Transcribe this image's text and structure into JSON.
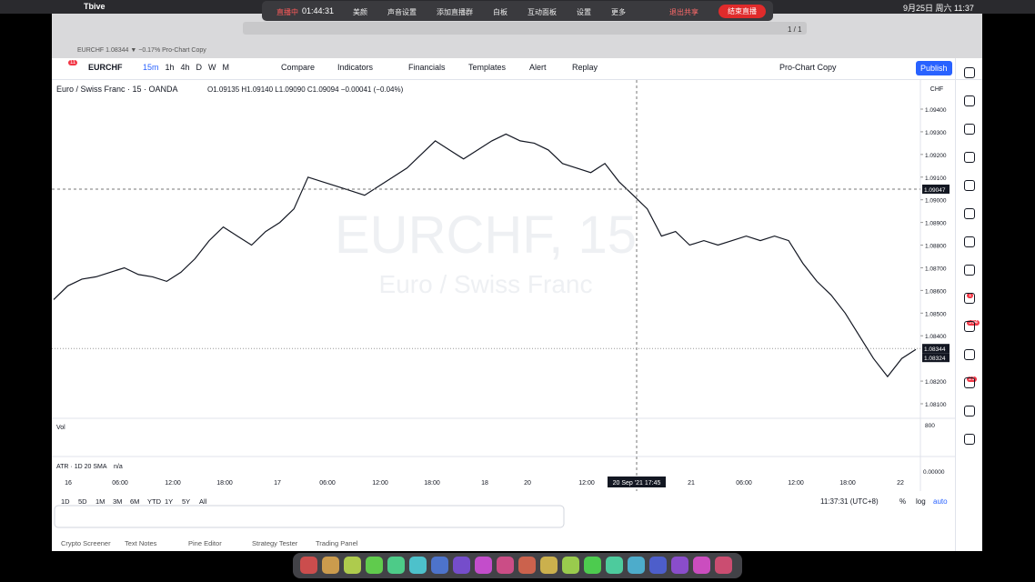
{
  "menubar": {
    "app": "Tbive",
    "datetime": "9月25日 周六 11:37"
  },
  "live_bar": {
    "status": "直播中",
    "timer": "01:44:31",
    "items": [
      "美颜",
      "声音设置",
      "添加直播群",
      "白板",
      "互动面板",
      "设置",
      "更多"
    ],
    "stop_share": "退出共享",
    "end_live": "结束直播",
    "pages": "1 / 1"
  },
  "browser": {
    "tab": "EURCHF 1.08344 ▼ −0.17% Pro-Chart Copy"
  },
  "toolbar": {
    "menu_badge": "11",
    "symbol": "EURCHF",
    "intervals": [
      "15m",
      "1h",
      "4h",
      "D",
      "W",
      "M"
    ],
    "compare": "Compare",
    "indicators": "Indicators",
    "financials": "Financials",
    "templates": "Templates",
    "alert": "Alert",
    "replay": "Replay",
    "layout": "Pro-Chart Copy",
    "publish": "Publish"
  },
  "legend": {
    "title": "Euro / Swiss Franc · 15 · OANDA",
    "ohlc": "O1.09135 H1.09140 L1.09090 C1.09094 −0.00041 (−0.04%)"
  },
  "watermark": {
    "symbol": "EURCHF, 15",
    "name": "Euro / Swiss Franc"
  },
  "chart": {
    "currency": "CHF",
    "ylim": [
      1.081,
      1.094
    ],
    "yticks": [
      {
        "value": 1.094,
        "label": "1.09400"
      },
      {
        "value": 1.093,
        "label": "1.09300"
      },
      {
        "value": 1.092,
        "label": "1.09200"
      },
      {
        "value": 1.091,
        "label": "1.09100"
      },
      {
        "value": 1.09,
        "label": "1.09000"
      },
      {
        "value": 1.089,
        "label": "1.08900"
      },
      {
        "value": 1.088,
        "label": "1.08800"
      },
      {
        "value": 1.087,
        "label": "1.08700"
      },
      {
        "value": 1.086,
        "label": "1.08600"
      },
      {
        "value": 1.085,
        "label": "1.08500"
      },
      {
        "value": 1.084,
        "label": "1.08400"
      },
      {
        "value": 1.082,
        "label": "1.08200"
      },
      {
        "value": 1.081,
        "label": "1.08100"
      }
    ],
    "crosshair_price": {
      "value": 1.09047,
      "label": "1.09047"
    },
    "last_price": {
      "value": 1.08344,
      "label": "1.08344"
    },
    "prev_close": {
      "value": 1.08324,
      "label": "1.08324"
    },
    "closes": [
      1.0856,
      1.0862,
      1.0865,
      1.0866,
      1.0868,
      1.087,
      1.0867,
      1.0866,
      1.0864,
      1.0868,
      1.0874,
      1.0882,
      1.0888,
      1.0884,
      1.088,
      1.0886,
      1.089,
      1.0896,
      1.091,
      1.0908,
      1.0906,
      1.0904,
      1.0902,
      1.0906,
      1.091,
      1.0914,
      1.092,
      1.0926,
      1.0922,
      1.0918,
      1.0922,
      1.0926,
      1.0929,
      1.0926,
      1.0925,
      1.0922,
      1.0916,
      1.0914,
      1.0912,
      1.0916,
      1.0908,
      1.0902,
      1.0896,
      1.0884,
      1.0886,
      1.088,
      1.0882,
      1.088,
      1.0882,
      1.0884,
      1.0882,
      1.0884,
      1.0882,
      1.0872,
      1.0864,
      1.0858,
      1.085,
      1.084,
      1.083,
      1.0822,
      1.083,
      1.0834
    ],
    "volume_label": "Vol",
    "volume_tick": "800",
    "atr_label": "ATR · 1D 20 SMA",
    "atr_value": "n/a",
    "atr_tick": "0.00000",
    "time_labels": [
      "16",
      "06:00",
      "12:00",
      "18:00",
      "17",
      "06:00",
      "12:00",
      "18:00",
      "18",
      "20",
      "12:00",
      "20 Sep '21   17:45",
      "21",
      "06:00",
      "12:00",
      "18:00",
      "22"
    ]
  },
  "bottom_bar": {
    "ranges": [
      "1D",
      "5D",
      "1M",
      "3M",
      "6M",
      "YTD",
      "1Y",
      "5Y",
      "All"
    ],
    "clock": "11:37:31 (UTC+8)",
    "percent": "%",
    "log": "log",
    "auto": "auto"
  },
  "panel_tabs": [
    "Crypto Screener",
    "Text Notes",
    "Pine Editor",
    "Strategy Tester",
    "Trading Panel"
  ],
  "sidebar_badges": [
    "1",
    "594",
    "21"
  ]
}
